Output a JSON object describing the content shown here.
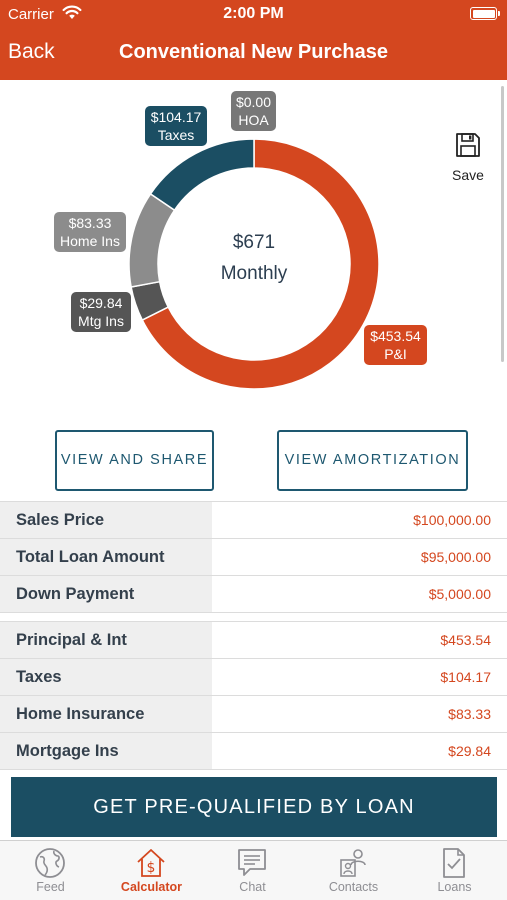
{
  "status_bar": {
    "carrier": "Carrier",
    "time": "2:00 PM"
  },
  "nav": {
    "back_label": "Back",
    "title": "Conventional New Purchase"
  },
  "chart_data": {
    "type": "pie",
    "style": "donut",
    "center_amount": "$671",
    "center_label": "Monthly",
    "slices": [
      {
        "name": "P&I",
        "value": 453.54,
        "label": "$453.54",
        "color": "#d4471f"
      },
      {
        "name": "Mtg Ins",
        "value": 29.84,
        "label": "$29.84",
        "color": "#555555"
      },
      {
        "name": "Home Ins",
        "value": 83.33,
        "label": "$83.33",
        "color": "#8c8c8c"
      },
      {
        "name": "Taxes",
        "value": 104.17,
        "label": "$104.17",
        "color": "#1b4e63"
      },
      {
        "name": "HOA",
        "value": 0.0,
        "label": "$0.00",
        "color": "#777777"
      }
    ]
  },
  "save": {
    "label": "Save",
    "icon": "floppy-disk-icon"
  },
  "actions": {
    "view_share": "VIEW AND SHARE",
    "view_amortization": "VIEW AMORTIZATION"
  },
  "loan_summary": [
    {
      "label": "Sales Price",
      "value": "$100,000.00"
    },
    {
      "label": "Total Loan Amount",
      "value": "$95,000.00"
    },
    {
      "label": "Down Payment",
      "value": "$5,000.00"
    }
  ],
  "payment_breakdown": [
    {
      "label": "Principal & Int",
      "value": "$453.54"
    },
    {
      "label": "Taxes",
      "value": "$104.17"
    },
    {
      "label": "Home Insurance",
      "value": "$83.33"
    },
    {
      "label": "Mortgage Ins",
      "value": "$29.84"
    }
  ],
  "cta": {
    "label": "GET PRE-QUALIFIED BY LOAN"
  },
  "tabs": [
    {
      "label": "Feed",
      "icon": "globe-icon"
    },
    {
      "label": "Calculator",
      "icon": "house-dollar-icon",
      "active": true
    },
    {
      "label": "Chat",
      "icon": "chat-bubble-icon"
    },
    {
      "label": "Contacts",
      "icon": "contacts-icon"
    },
    {
      "label": "Loans",
      "icon": "document-check-icon"
    }
  ],
  "colors": {
    "brand": "#d4471f",
    "navy": "#1b4e63"
  }
}
